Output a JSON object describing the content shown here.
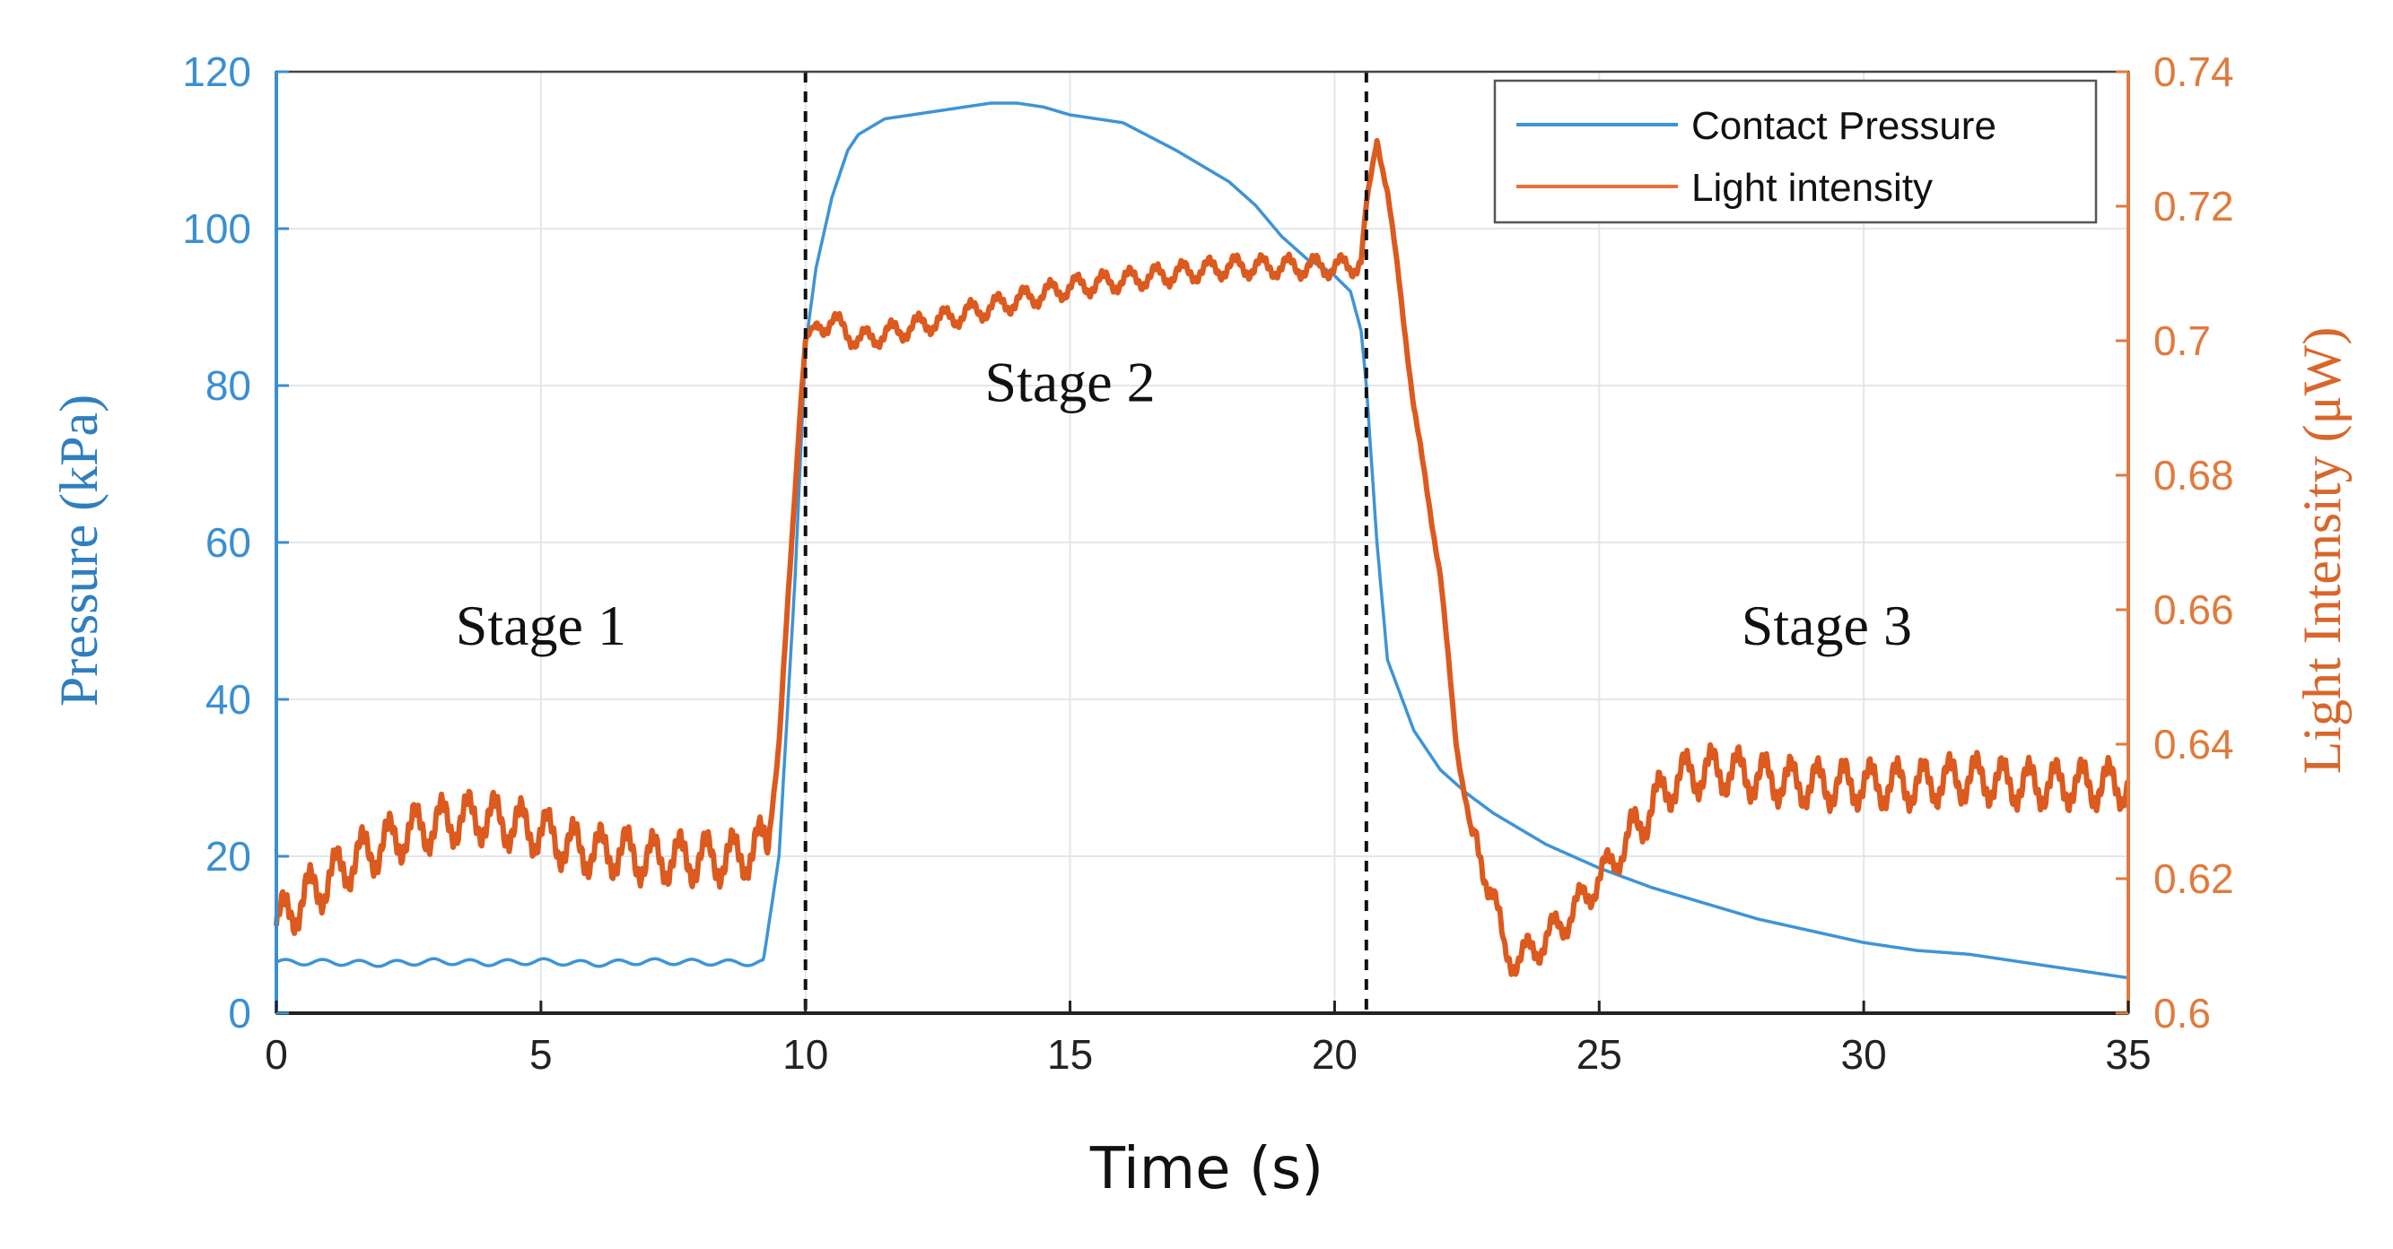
{
  "chart_data": {
    "type": "line",
    "xlabel": "Time (s)",
    "ylabel_left": "Pressure (kPa)",
    "ylabel_right": "Light Intensity (μW)",
    "xlim": [
      0,
      35
    ],
    "ylim_left": [
      0,
      120
    ],
    "ylim_right": [
      0.6,
      0.74
    ],
    "x_ticks": [
      "0",
      "5",
      "10",
      "15",
      "20",
      "25",
      "30",
      "35"
    ],
    "y_ticks_left": [
      "0",
      "20",
      "40",
      "60",
      "80",
      "100",
      "120"
    ],
    "y_ticks_right": [
      "0.6",
      "0.62",
      "0.64",
      "0.66",
      "0.68",
      "0.7",
      "0.72",
      "0.74"
    ],
    "grid": true,
    "legend_position": "top-right",
    "vlines": [
      10,
      20.6
    ],
    "annotations": [
      {
        "text": "Stage 1",
        "x": 5,
        "y": 47
      },
      {
        "text": "Stage 2",
        "x": 15,
        "y": 78
      },
      {
        "text": "Stage 3",
        "x": 29.3,
        "y": 47
      }
    ],
    "series": [
      {
        "name": "Contact Pressure",
        "axis": "left",
        "color": "#3d94d6",
        "x": [
          0,
          1,
          2,
          3,
          4,
          5,
          6,
          7,
          8,
          9,
          9.2,
          9.5,
          9.8,
          10.0,
          10.2,
          10.5,
          10.8,
          11.0,
          11.5,
          12.0,
          12.5,
          13.0,
          13.5,
          14.0,
          14.5,
          15.0,
          16.0,
          17.0,
          18.0,
          18.5,
          19.0,
          19.5,
          19.8,
          20.0,
          20.3,
          20.5,
          20.6,
          20.8,
          21.0,
          21.5,
          22.0,
          22.5,
          23.0,
          24.0,
          25.0,
          26.0,
          27.0,
          28.0,
          29.0,
          30.0,
          31.0,
          32.0,
          33.0,
          34.0,
          35.0
        ],
        "values": [
          6.5,
          6.5,
          6.3,
          6.6,
          6.4,
          6.6,
          6.3,
          6.6,
          6.5,
          6.4,
          6.5,
          20,
          55,
          85,
          95,
          104,
          110,
          112,
          114,
          114.5,
          115,
          115.5,
          116,
          116,
          115.5,
          114.5,
          113.5,
          110,
          106,
          103,
          99,
          96,
          95,
          94,
          92,
          87,
          80,
          60,
          45,
          36,
          31,
          28,
          25.5,
          21.5,
          18.5,
          16,
          14,
          12,
          10.5,
          9,
          8,
          7.5,
          6.5,
          5.5,
          4.5
        ]
      },
      {
        "name": "Light intensity",
        "axis": "right",
        "color": "#dc5a1e",
        "x": [
          0,
          0.5,
          1,
          1.5,
          2,
          2.5,
          3,
          3.5,
          4,
          4.5,
          5,
          5.5,
          6,
          6.5,
          7,
          7.5,
          8,
          8.5,
          9,
          9.3,
          9.5,
          9.7,
          9.9,
          10.0,
          10.2,
          10.5,
          11.0,
          11.5,
          12,
          13,
          14,
          15,
          16,
          17,
          18,
          19,
          20,
          20.3,
          20.5,
          20.6,
          20.8,
          21.0,
          21.2,
          21.5,
          22.0,
          22.3,
          22.6,
          23.0,
          23.2,
          23.5,
          24.0,
          24.5,
          25,
          25.5,
          26,
          26.5,
          27,
          27.5,
          28,
          29,
          30,
          31,
          32,
          33,
          34,
          35
        ],
        "values": [
          0.613,
          0.617,
          0.62,
          0.623,
          0.625,
          0.627,
          0.628,
          0.629,
          0.629,
          0.628,
          0.627,
          0.625,
          0.624,
          0.624,
          0.623,
          0.623,
          0.623,
          0.623,
          0.624,
          0.626,
          0.64,
          0.665,
          0.69,
          0.7,
          0.702,
          0.703,
          0.7,
          0.701,
          0.702,
          0.704,
          0.706,
          0.708,
          0.709,
          0.71,
          0.711,
          0.711,
          0.711,
          0.711,
          0.712,
          0.72,
          0.73,
          0.722,
          0.71,
          0.69,
          0.665,
          0.64,
          0.626,
          0.618,
          0.609,
          0.608,
          0.611,
          0.615,
          0.62,
          0.625,
          0.631,
          0.635,
          0.636,
          0.636,
          0.635,
          0.634,
          0.634,
          0.634,
          0.635,
          0.634,
          0.634,
          0.634
        ]
      }
    ]
  }
}
